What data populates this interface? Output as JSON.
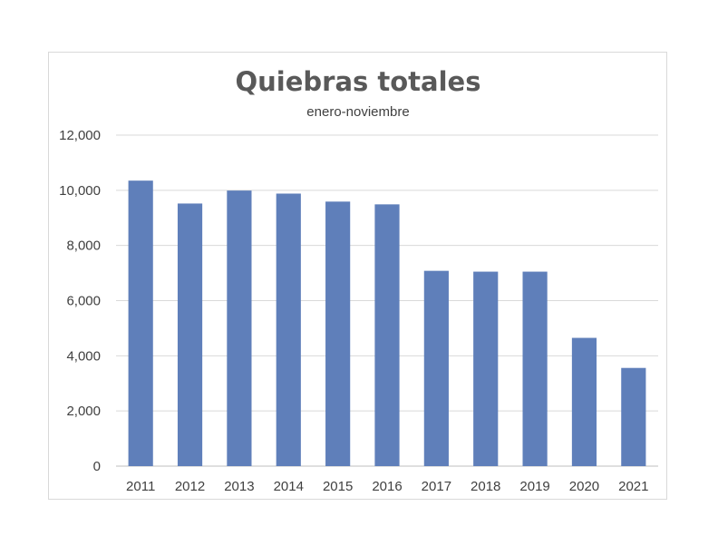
{
  "chart_data": {
    "type": "bar",
    "title": "Quiebras totales",
    "subtitle": "enero-noviembre",
    "xlabel": "",
    "ylabel": "",
    "categories": [
      "2011",
      "2012",
      "2013",
      "2014",
      "2015",
      "2016",
      "2017",
      "2018",
      "2019",
      "2020",
      "2021"
    ],
    "values": [
      10350,
      9520,
      9990,
      9880,
      9590,
      9490,
      7080,
      7050,
      7050,
      4650,
      3560
    ],
    "ylim": [
      0,
      12000
    ],
    "yticks": [
      0,
      2000,
      4000,
      6000,
      8000,
      10000,
      12000
    ],
    "ytick_labels": [
      "0",
      "2,000",
      "4,000",
      "6,000",
      "8,000",
      "10,000",
      "12,000"
    ],
    "grid": true,
    "legend": "none",
    "bar_color": "#5f7fba"
  }
}
